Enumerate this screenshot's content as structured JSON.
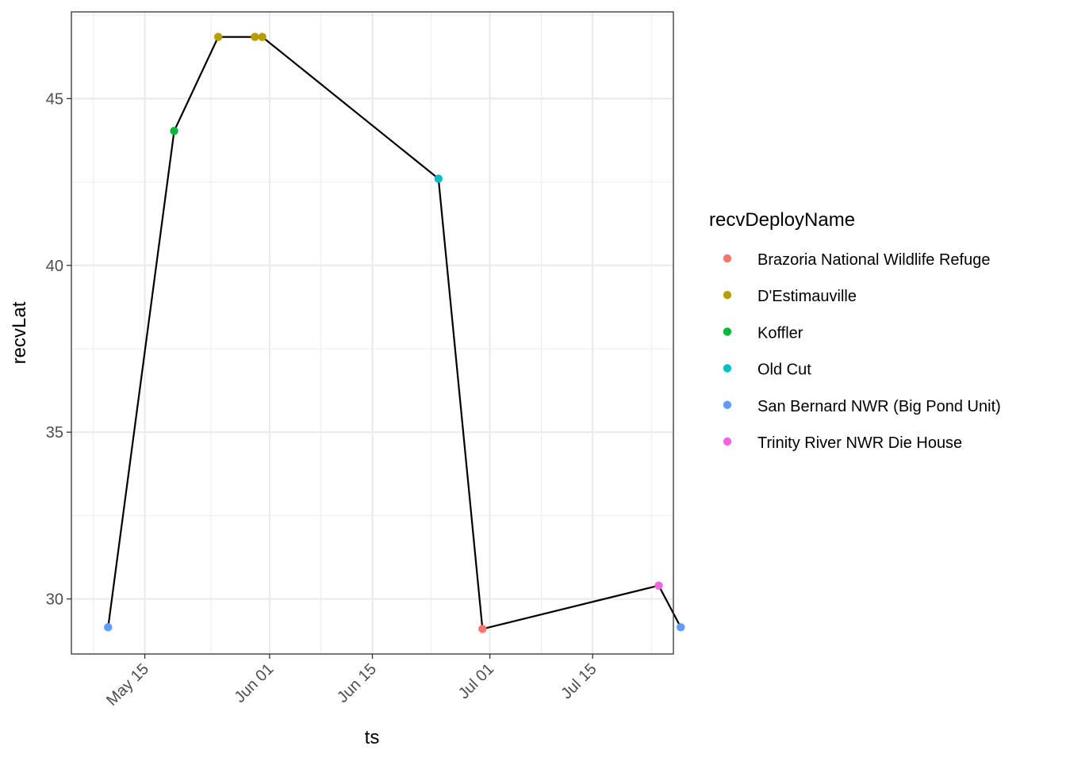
{
  "chart_data": {
    "type": "line",
    "xlabel": "ts",
    "ylabel": "recvLat",
    "x_axis_type": "date",
    "xlim": [
      "2024-05-05",
      "2024-07-26"
    ],
    "ylim": [
      28.35,
      47.6
    ],
    "x_ticks": [
      {
        "date": "2024-05-15",
        "label": "May 15"
      },
      {
        "date": "2024-06-01",
        "label": "Jun 01"
      },
      {
        "date": "2024-06-15",
        "label": "Jun 15"
      },
      {
        "date": "2024-07-01",
        "label": "Jul 01"
      },
      {
        "date": "2024-07-15",
        "label": "Jul 15"
      }
    ],
    "x_minor_ticks": [
      "2024-05-08",
      "2024-05-24",
      "2024-06-08",
      "2024-06-23",
      "2024-07-08",
      "2024-07-23"
    ],
    "y_ticks": [
      30,
      35,
      40,
      45
    ],
    "y_minor_ticks": [
      32.5,
      37.5,
      42.5,
      47.5
    ],
    "grid": true,
    "line_color": "#000000",
    "legend": {
      "title": "recvDeployName",
      "placement": "right",
      "entries": [
        {
          "name": "Brazoria National Wildlife Refuge",
          "color": "#F8766D"
        },
        {
          "name": "D'Estimauville",
          "color": "#B79F00"
        },
        {
          "name": "Koffler",
          "color": "#00BA38"
        },
        {
          "name": "Old Cut",
          "color": "#00BFC4"
        },
        {
          "name": "San Bernard NWR (Big Pond Unit)",
          "color": "#619CFF"
        },
        {
          "name": "Trinity River NWR Die House",
          "color": "#F564E3"
        }
      ]
    },
    "points": [
      {
        "x": "2024-05-10",
        "y": 29.15,
        "group": "San Bernard NWR (Big Pond Unit)"
      },
      {
        "x": "2024-05-19",
        "y": 44.03,
        "group": "Koffler"
      },
      {
        "x": "2024-05-25",
        "y": 46.85,
        "group": "D'Estimauville"
      },
      {
        "x": "2024-05-30",
        "y": 46.85,
        "group": "D'Estimauville"
      },
      {
        "x": "2024-05-31",
        "y": 46.85,
        "group": "D'Estimauville"
      },
      {
        "x": "2024-06-24",
        "y": 42.6,
        "group": "Old Cut"
      },
      {
        "x": "2024-06-30",
        "y": 29.1,
        "group": "Brazoria National Wildlife Refuge"
      },
      {
        "x": "2024-07-24",
        "y": 30.4,
        "group": "Trinity River NWR Die House"
      },
      {
        "x": "2024-07-27",
        "y": 29.15,
        "group": "San Bernard NWR (Big Pond Unit)"
      }
    ]
  }
}
